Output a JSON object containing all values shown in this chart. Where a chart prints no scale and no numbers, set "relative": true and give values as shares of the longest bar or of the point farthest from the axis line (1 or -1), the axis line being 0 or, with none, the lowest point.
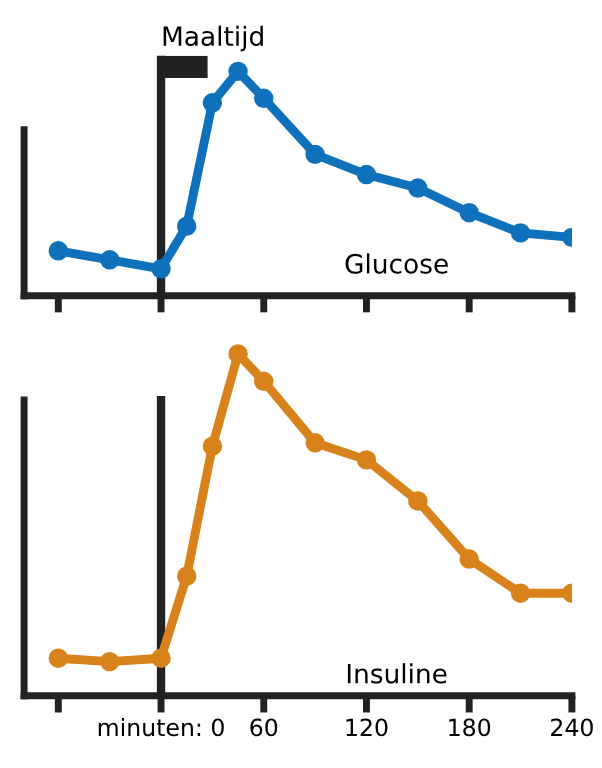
{
  "chart_data": [
    {
      "type": "line",
      "relative": true,
      "x": [
        -60,
        -30,
        0,
        15,
        30,
        45,
        60,
        90,
        120,
        150,
        180,
        210,
        240
      ],
      "xlim": [
        -80,
        240
      ],
      "xticks": [
        -60,
        0,
        60,
        120,
        180,
        240
      ],
      "tick_labels": false,
      "marker": "circle",
      "line_style": "solid",
      "grid": false,
      "annotations": [
        "Glucose"
      ],
      "series": [
        {
          "color": "#0f71bb",
          "values": [
            0.2,
            0.16,
            0.12,
            0.31,
            0.86,
            1,
            0.88,
            0.63,
            0.54,
            0.48,
            0.37,
            0.28,
            0.26
          ]
        }
      ],
      "ref_lines": [
        {
          "axis": "x",
          "value": 0,
          "label": "Maaltijd",
          "color": "#222222"
        }
      ]
    },
    {
      "type": "line",
      "relative": true,
      "x": [
        -60,
        -30,
        0,
        15,
        30,
        45,
        60,
        90,
        120,
        150,
        180,
        210,
        240
      ],
      "xlim": [
        -80,
        240
      ],
      "xticks": [
        {
          "value": -60,
          "label": null
        },
        {
          "value": 0,
          "label": "minuten: 0"
        },
        60,
        120,
        180,
        240
      ],
      "tick_labels": "x",
      "marker": "circle",
      "line_style": "solid",
      "grid": false,
      "annotations": [
        "Insuline"
      ],
      "series": [
        {
          "color": "#d8821c",
          "values": [
            0.11,
            0.1,
            0.11,
            0.35,
            0.73,
            1,
            0.92,
            0.74,
            0.69,
            0.57,
            0.4,
            0.3,
            0.3
          ]
        }
      ],
      "ref_lines": [
        {
          "axis": "x",
          "value": 0,
          "color": "#222222"
        }
      ]
    }
  ]
}
